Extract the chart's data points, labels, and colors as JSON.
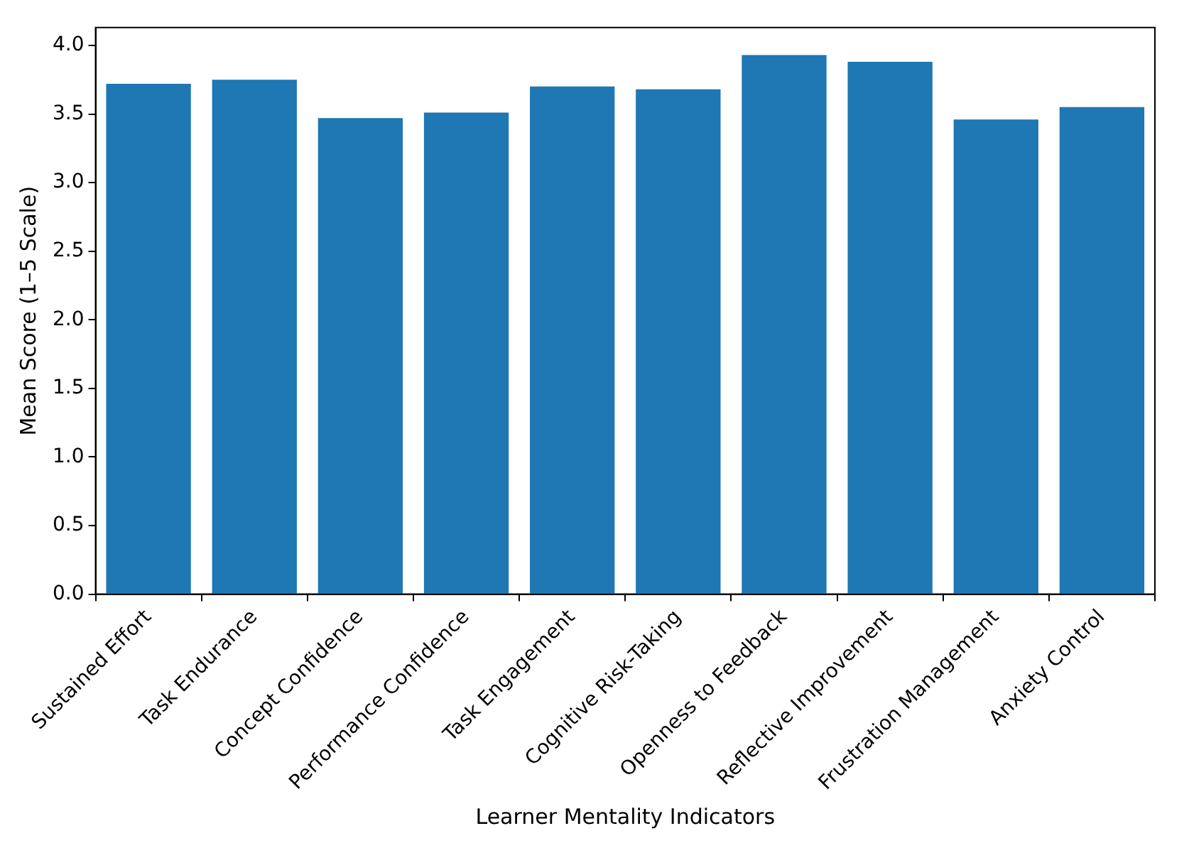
{
  "chart_data": {
    "type": "bar",
    "xlabel": "Learner Mentality Indicators",
    "ylabel": "Mean Score (1–5 Scale)",
    "categories": [
      "Sustained Effort",
      "Task Endurance",
      "Concept Confidence",
      "Performance Confidence",
      "Task Engagement",
      "Cognitive Risk-Taking",
      "Openness to Feedback",
      "Reflective Improvement",
      "Frustration Management",
      "Anxiety Control"
    ],
    "values": [
      3.72,
      3.75,
      3.47,
      3.51,
      3.7,
      3.68,
      3.93,
      3.88,
      3.46,
      3.55
    ],
    "color": "#1f77b4",
    "ylim": [
      0,
      4.13
    ],
    "yticks": [
      {
        "value": 0,
        "label": "0.0"
      },
      0.5,
      {
        "value": 1,
        "label": "1.0"
      },
      1.5,
      {
        "value": 2,
        "label": "2.0"
      },
      2.5,
      {
        "value": 3,
        "label": "3.0"
      },
      3.5,
      {
        "value": 4,
        "label": "4.0"
      }
    ],
    "grid": false,
    "legend": false
  }
}
